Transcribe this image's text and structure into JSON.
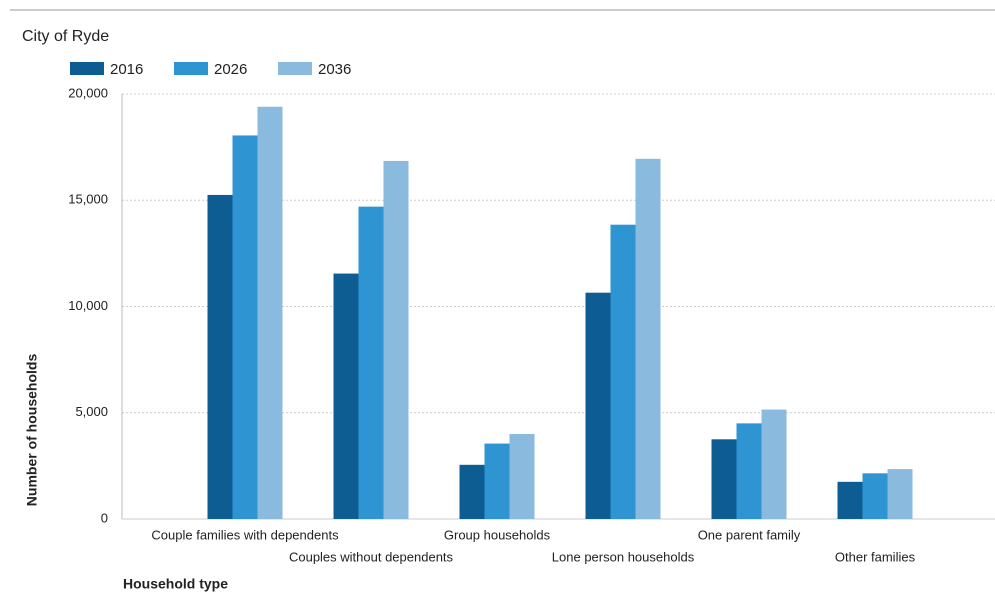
{
  "chart_data": {
    "type": "bar",
    "title": "City of Ryde",
    "x_label": "Household type",
    "y_label": "Number of households",
    "categories": [
      "Couple families with dependents",
      "Couples without dependents",
      "Group households",
      "Lone person households",
      "One parent family",
      "Other families"
    ],
    "series": [
      {
        "name": "2016",
        "color": "#0d5d93",
        "values": [
          15250,
          11550,
          2550,
          10650,
          3750,
          1750
        ]
      },
      {
        "name": "2026",
        "color": "#2f95d2",
        "values": [
          18050,
          14700,
          3550,
          13850,
          4500,
          2150
        ]
      },
      {
        "name": "2036",
        "color": "#8bbadf",
        "values": [
          19400,
          16850,
          4000,
          16950,
          5150,
          2350
        ]
      }
    ],
    "ylim": [
      0,
      20000
    ],
    "yticks": [
      0,
      {
        "value": 5000,
        "label": "5,000"
      },
      {
        "value": 10000,
        "label": "10,000"
      },
      {
        "value": 15000,
        "label": "15,000"
      },
      {
        "value": 20000,
        "label": "20,000"
      }
    ],
    "grid": true
  }
}
